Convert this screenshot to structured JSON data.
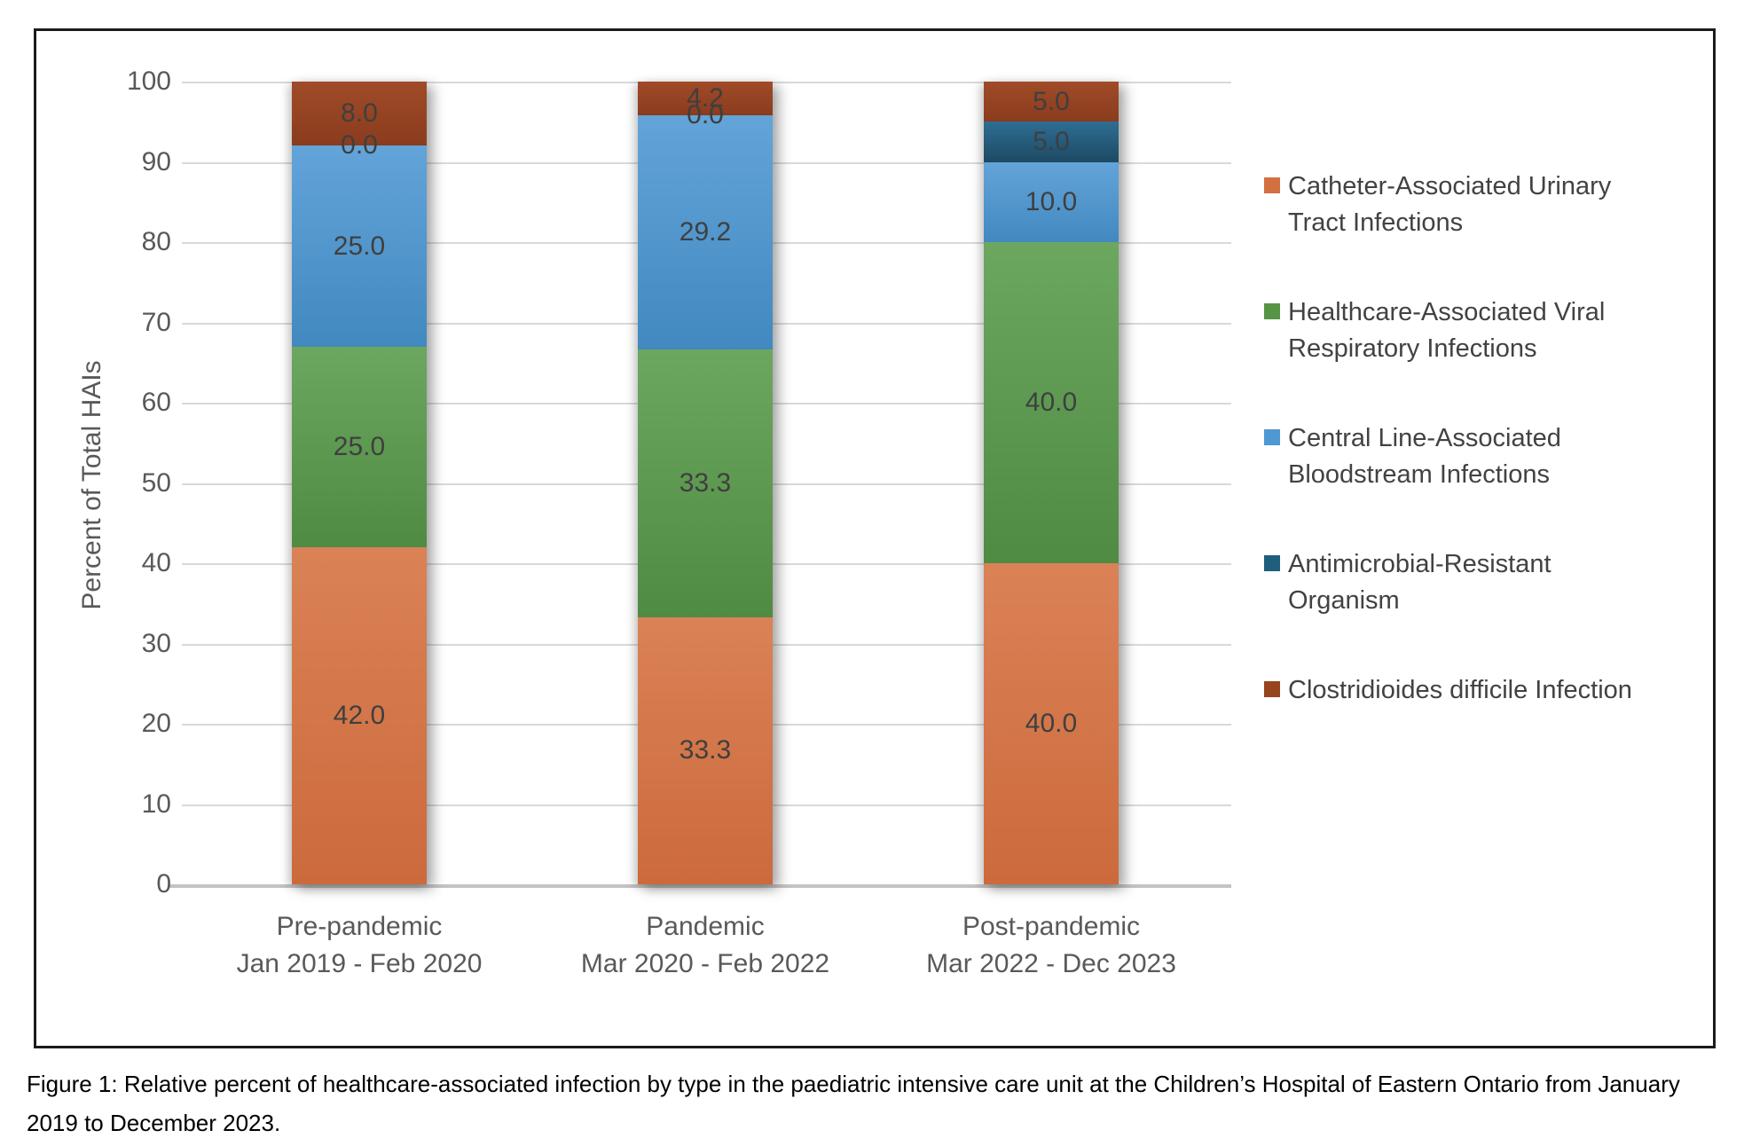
{
  "figure": {
    "caption": "Figure 1: Relative percent of healthcare-associated infection by type in the paediatric intensive care unit at the Children’s Hospital of Eastern Ontario from January 2019 to December 2023."
  },
  "chart_data": {
    "type": "bar",
    "subtype": "stacked-column-100",
    "title": "",
    "xlabel": "",
    "ylabel": "Percent of Total HAIs",
    "ylim": [
      0,
      100
    ],
    "ytick_step": 10,
    "grid": "horizontal",
    "legend_position": "right",
    "data_label_decimals": 1,
    "categories": [
      {
        "label": "Pre-pandemic",
        "period": "Jan 2019 - Feb 2020"
      },
      {
        "label": "Pandemic",
        "period": "Mar 2020 - Feb 2022"
      },
      {
        "label": "Post-pandemic",
        "period": "Mar 2022 - Dec 2023"
      }
    ],
    "series": [
      {
        "name": "Catheter-Associated Urinary Tract Infections",
        "color": "#D2703F",
        "gradient": [
          "#DA8256",
          "#CC6A3C"
        ],
        "values": [
          42.0,
          33.3,
          40.0
        ]
      },
      {
        "name": "Healthcare-Associated Viral Respiratory Infections",
        "color": "#569546",
        "gradient": [
          "#6CA760",
          "#4F8B42"
        ],
        "values": [
          25.0,
          33.3,
          40.0
        ]
      },
      {
        "name": "Central Line-Associated Bloodstream Infections",
        "color": "#4E98D3",
        "gradient": [
          "#63A4D9",
          "#4189C0"
        ],
        "values": [
          25.0,
          29.2,
          10.0
        ]
      },
      {
        "name": "Antimicrobial-Resistant Organism",
        "color": "#205E7D",
        "gradient": [
          "#2E6E93",
          "#1D4963"
        ],
        "values": [
          0.0,
          0.0,
          5.0
        ]
      },
      {
        "name": "Clostridioides difficile Infection",
        "color": "#96451F",
        "gradient": [
          "#A04B28",
          "#8A3C1D"
        ],
        "values": [
          8.0,
          4.2,
          5.0
        ]
      }
    ]
  }
}
